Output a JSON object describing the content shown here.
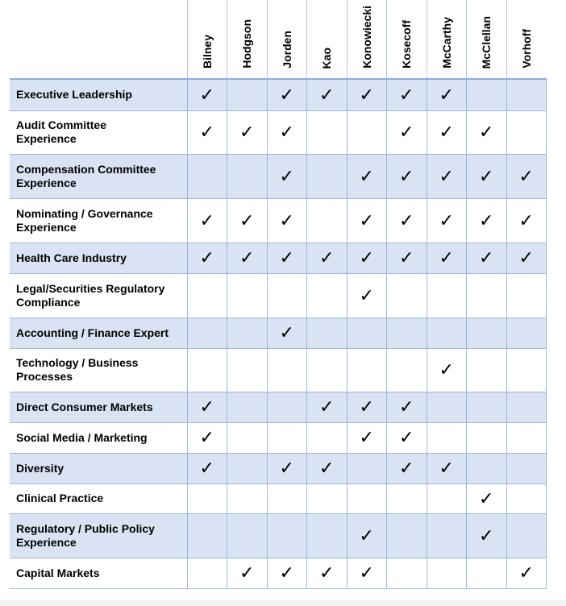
{
  "table": {
    "columns": [
      "Bilney",
      "Hodgson",
      "Jorden",
      "Kao",
      "Konowiecki",
      "Kosecoff",
      "McCarthy",
      "McClellan",
      "Vorhoff"
    ],
    "rows": [
      {
        "label": "Executive Leadership",
        "cells": [
          "✓",
          null,
          "✓",
          "✓",
          "✓",
          "✓",
          "✓",
          null,
          null
        ]
      },
      {
        "label": "Audit Committee\nExperience",
        "cells": [
          "✓",
          "✓",
          "✓",
          null,
          null,
          "✓",
          "✓",
          "✓",
          null
        ]
      },
      {
        "label": "Compensation Committee\nExperience",
        "cells": [
          null,
          null,
          "✓",
          null,
          "✓",
          "✓",
          "✓",
          "✓",
          "✓"
        ]
      },
      {
        "label": "Nominating / Governance\nExperience",
        "cells": [
          "✓",
          "✓",
          "✓",
          null,
          "✓",
          "✓",
          "✓",
          "✓",
          "✓"
        ]
      },
      {
        "label": "Health Care Industry",
        "cells": [
          "✓",
          "✓",
          "✓",
          "✓",
          "✓",
          "✓",
          "✓",
          "✓",
          "✓"
        ]
      },
      {
        "label": "Legal/Securities Regulatory\nCompliance",
        "cells": [
          null,
          null,
          null,
          null,
          "✓",
          null,
          null,
          null,
          null
        ]
      },
      {
        "label": "Accounting / Finance Expert",
        "cells": [
          null,
          null,
          "✓",
          null,
          null,
          null,
          null,
          null,
          null
        ]
      },
      {
        "label": "Technology / Business\nProcesses",
        "cells": [
          null,
          null,
          null,
          null,
          null,
          null,
          "✓",
          null,
          null
        ]
      },
      {
        "label": "Direct Consumer Markets",
        "cells": [
          "✓",
          null,
          null,
          "✓",
          "✓",
          "✓",
          null,
          null,
          null
        ]
      },
      {
        "label": "Social Media / Marketing",
        "cells": [
          "✓",
          null,
          null,
          null,
          "✓",
          "✓",
          null,
          null,
          null
        ]
      },
      {
        "label": "Diversity",
        "cells": [
          "✓",
          null,
          "✓",
          "✓",
          null,
          "✓",
          "✓",
          null,
          null
        ]
      },
      {
        "label": "Clinical Practice",
        "cells": [
          null,
          null,
          null,
          null,
          null,
          null,
          null,
          "✓",
          null
        ]
      },
      {
        "label": "Regulatory / Public Policy\nExperience",
        "cells": [
          null,
          null,
          null,
          null,
          "✓",
          null,
          null,
          "✓",
          null
        ]
      },
      {
        "label": "Capital Markets",
        "cells": [
          null,
          "✓",
          "✓",
          "✓",
          "✓",
          null,
          null,
          null,
          "✓"
        ]
      }
    ]
  }
}
